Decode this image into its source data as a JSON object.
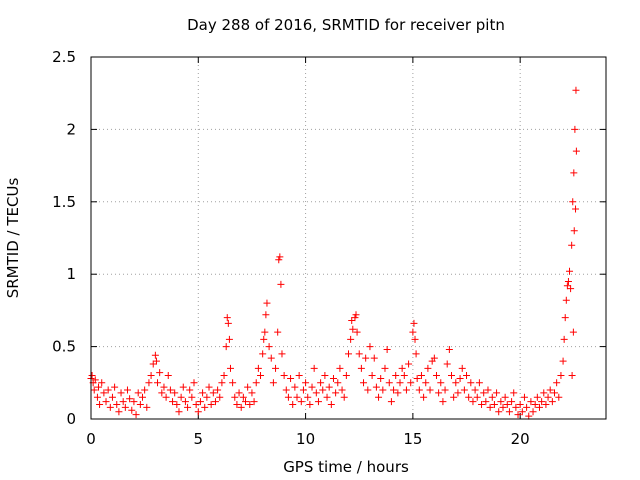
{
  "chart_data": {
    "type": "scatter",
    "title": "Day 288 of 2016, SRMTID for receiver pitn",
    "xlabel": "GPS time / hours",
    "ylabel": "SRMTID / TECUs",
    "xlim": [
      0,
      24
    ],
    "ylim": [
      0,
      2.5
    ],
    "xticks": [
      0,
      5,
      10,
      15,
      20
    ],
    "xtick_labels": [
      "0",
      "5",
      "10",
      "15",
      "20"
    ],
    "yticks": [
      0,
      0.5,
      1,
      1.5,
      2,
      2.5
    ],
    "ytick_labels": [
      "0",
      "0.5",
      "1",
      "1.5",
      "2",
      "2.5"
    ],
    "grid": true,
    "marker": "+",
    "marker_color": "#ff0000",
    "series": [
      {
        "name": "SRMTID",
        "points": [
          [
            0.0,
            0.28
          ],
          [
            0.05,
            0.3
          ],
          [
            0.1,
            0.25
          ],
          [
            0.15,
            0.2
          ],
          [
            0.2,
            0.27
          ],
          [
            0.3,
            0.15
          ],
          [
            0.35,
            0.22
          ],
          [
            0.4,
            0.1
          ],
          [
            0.5,
            0.25
          ],
          [
            0.6,
            0.18
          ],
          [
            0.7,
            0.12
          ],
          [
            0.8,
            0.2
          ],
          [
            0.9,
            0.08
          ],
          [
            1.0,
            0.15
          ],
          [
            1.1,
            0.22
          ],
          [
            1.2,
            0.1
          ],
          [
            1.3,
            0.05
          ],
          [
            1.4,
            0.18
          ],
          [
            1.5,
            0.12
          ],
          [
            1.6,
            0.08
          ],
          [
            1.7,
            0.2
          ],
          [
            1.8,
            0.14
          ],
          [
            1.9,
            0.06
          ],
          [
            2.0,
            0.12
          ],
          [
            2.1,
            0.03
          ],
          [
            2.2,
            0.18
          ],
          [
            2.3,
            0.1
          ],
          [
            2.4,
            0.15
          ],
          [
            2.5,
            0.2
          ],
          [
            2.6,
            0.08
          ],
          [
            2.7,
            0.25
          ],
          [
            2.8,
            0.3
          ],
          [
            2.9,
            0.38
          ],
          [
            3.0,
            0.44
          ],
          [
            3.05,
            0.4
          ],
          [
            3.1,
            0.25
          ],
          [
            3.2,
            0.32
          ],
          [
            3.3,
            0.18
          ],
          [
            3.4,
            0.22
          ],
          [
            3.5,
            0.15
          ],
          [
            3.6,
            0.3
          ],
          [
            3.7,
            0.2
          ],
          [
            3.8,
            0.12
          ],
          [
            3.9,
            0.18
          ],
          [
            4.0,
            0.1
          ],
          [
            4.1,
            0.05
          ],
          [
            4.2,
            0.15
          ],
          [
            4.3,
            0.22
          ],
          [
            4.4,
            0.12
          ],
          [
            4.5,
            0.08
          ],
          [
            4.6,
            0.2
          ],
          [
            4.7,
            0.15
          ],
          [
            4.8,
            0.25
          ],
          [
            4.9,
            0.1
          ],
          [
            5.0,
            0.05
          ],
          [
            5.1,
            0.12
          ],
          [
            5.2,
            0.18
          ],
          [
            5.3,
            0.08
          ],
          [
            5.4,
            0.15
          ],
          [
            5.5,
            0.22
          ],
          [
            5.6,
            0.1
          ],
          [
            5.7,
            0.18
          ],
          [
            5.8,
            0.12
          ],
          [
            5.9,
            0.2
          ],
          [
            6.0,
            0.15
          ],
          [
            6.1,
            0.25
          ],
          [
            6.2,
            0.3
          ],
          [
            6.3,
            0.5
          ],
          [
            6.35,
            0.7
          ],
          [
            6.4,
            0.66
          ],
          [
            6.45,
            0.55
          ],
          [
            6.5,
            0.35
          ],
          [
            6.6,
            0.25
          ],
          [
            6.7,
            0.15
          ],
          [
            6.8,
            0.1
          ],
          [
            6.9,
            0.18
          ],
          [
            7.0,
            0.08
          ],
          [
            7.1,
            0.15
          ],
          [
            7.2,
            0.12
          ],
          [
            7.3,
            0.22
          ],
          [
            7.4,
            0.1
          ],
          [
            7.5,
            0.18
          ],
          [
            7.6,
            0.12
          ],
          [
            7.7,
            0.25
          ],
          [
            7.8,
            0.35
          ],
          [
            7.9,
            0.3
          ],
          [
            8.0,
            0.45
          ],
          [
            8.05,
            0.55
          ],
          [
            8.1,
            0.6
          ],
          [
            8.15,
            0.72
          ],
          [
            8.2,
            0.8
          ],
          [
            8.3,
            0.5
          ],
          [
            8.4,
            0.42
          ],
          [
            8.5,
            0.25
          ],
          [
            8.6,
            0.35
          ],
          [
            8.7,
            0.6
          ],
          [
            8.75,
            1.1
          ],
          [
            8.8,
            1.12
          ],
          [
            8.85,
            0.93
          ],
          [
            8.9,
            0.45
          ],
          [
            9.0,
            0.3
          ],
          [
            9.1,
            0.2
          ],
          [
            9.2,
            0.15
          ],
          [
            9.3,
            0.28
          ],
          [
            9.4,
            0.1
          ],
          [
            9.5,
            0.22
          ],
          [
            9.6,
            0.15
          ],
          [
            9.7,
            0.3
          ],
          [
            9.8,
            0.12
          ],
          [
            9.9,
            0.2
          ],
          [
            10.0,
            0.25
          ],
          [
            10.1,
            0.15
          ],
          [
            10.2,
            0.1
          ],
          [
            10.3,
            0.22
          ],
          [
            10.4,
            0.35
          ],
          [
            10.5,
            0.18
          ],
          [
            10.6,
            0.12
          ],
          [
            10.7,
            0.25
          ],
          [
            10.8,
            0.2
          ],
          [
            10.9,
            0.3
          ],
          [
            11.0,
            0.15
          ],
          [
            11.1,
            0.22
          ],
          [
            11.2,
            0.1
          ],
          [
            11.3,
            0.28
          ],
          [
            11.4,
            0.18
          ],
          [
            11.5,
            0.25
          ],
          [
            11.6,
            0.35
          ],
          [
            11.7,
            0.2
          ],
          [
            11.8,
            0.15
          ],
          [
            11.9,
            0.3
          ],
          [
            12.0,
            0.45
          ],
          [
            12.1,
            0.55
          ],
          [
            12.15,
            0.68
          ],
          [
            12.2,
            0.62
          ],
          [
            12.3,
            0.7
          ],
          [
            12.35,
            0.72
          ],
          [
            12.4,
            0.6
          ],
          [
            12.5,
            0.45
          ],
          [
            12.6,
            0.35
          ],
          [
            12.7,
            0.25
          ],
          [
            12.8,
            0.42
          ],
          [
            12.9,
            0.2
          ],
          [
            13.0,
            0.5
          ],
          [
            13.1,
            0.3
          ],
          [
            13.2,
            0.42
          ],
          [
            13.3,
            0.22
          ],
          [
            13.4,
            0.15
          ],
          [
            13.5,
            0.28
          ],
          [
            13.6,
            0.2
          ],
          [
            13.7,
            0.35
          ],
          [
            13.8,
            0.48
          ],
          [
            13.9,
            0.25
          ],
          [
            14.0,
            0.12
          ],
          [
            14.1,
            0.2
          ],
          [
            14.2,
            0.3
          ],
          [
            14.3,
            0.18
          ],
          [
            14.4,
            0.25
          ],
          [
            14.5,
            0.35
          ],
          [
            14.6,
            0.3
          ],
          [
            14.7,
            0.2
          ],
          [
            14.8,
            0.38
          ],
          [
            14.9,
            0.25
          ],
          [
            15.0,
            0.6
          ],
          [
            15.05,
            0.66
          ],
          [
            15.1,
            0.55
          ],
          [
            15.15,
            0.45
          ],
          [
            15.2,
            0.28
          ],
          [
            15.3,
            0.2
          ],
          [
            15.4,
            0.3
          ],
          [
            15.5,
            0.15
          ],
          [
            15.6,
            0.25
          ],
          [
            15.7,
            0.35
          ],
          [
            15.8,
            0.2
          ],
          [
            15.9,
            0.4
          ],
          [
            16.0,
            0.42
          ],
          [
            16.1,
            0.3
          ],
          [
            16.2,
            0.18
          ],
          [
            16.3,
            0.25
          ],
          [
            16.4,
            0.12
          ],
          [
            16.5,
            0.2
          ],
          [
            16.6,
            0.38
          ],
          [
            16.7,
            0.48
          ],
          [
            16.8,
            0.3
          ],
          [
            16.9,
            0.15
          ],
          [
            17.0,
            0.25
          ],
          [
            17.1,
            0.18
          ],
          [
            17.2,
            0.28
          ],
          [
            17.3,
            0.35
          ],
          [
            17.4,
            0.2
          ],
          [
            17.5,
            0.3
          ],
          [
            17.6,
            0.15
          ],
          [
            17.7,
            0.25
          ],
          [
            17.8,
            0.12
          ],
          [
            17.9,
            0.2
          ],
          [
            18.0,
            0.15
          ],
          [
            18.1,
            0.25
          ],
          [
            18.2,
            0.1
          ],
          [
            18.3,
            0.18
          ],
          [
            18.4,
            0.12
          ],
          [
            18.5,
            0.2
          ],
          [
            18.6,
            0.08
          ],
          [
            18.7,
            0.15
          ],
          [
            18.8,
            0.1
          ],
          [
            18.9,
            0.18
          ],
          [
            19.0,
            0.05
          ],
          [
            19.1,
            0.12
          ],
          [
            19.2,
            0.08
          ],
          [
            19.3,
            0.15
          ],
          [
            19.4,
            0.1
          ],
          [
            19.5,
            0.05
          ],
          [
            19.6,
            0.12
          ],
          [
            19.7,
            0.18
          ],
          [
            19.8,
            0.08
          ],
          [
            19.9,
            0.03
          ],
          [
            20.0,
            0.1
          ],
          [
            20.1,
            0.05
          ],
          [
            20.2,
            0.15
          ],
          [
            20.3,
            0.08
          ],
          [
            20.4,
            0.02
          ],
          [
            20.5,
            0.12
          ],
          [
            20.6,
            0.05
          ],
          [
            20.7,
            0.1
          ],
          [
            20.8,
            0.15
          ],
          [
            20.9,
            0.08
          ],
          [
            21.0,
            0.12
          ],
          [
            21.1,
            0.18
          ],
          [
            21.2,
            0.1
          ],
          [
            21.3,
            0.15
          ],
          [
            21.4,
            0.2
          ],
          [
            21.5,
            0.12
          ],
          [
            21.6,
            0.18
          ],
          [
            21.7,
            0.25
          ],
          [
            21.8,
            0.15
          ],
          [
            21.9,
            0.3
          ],
          [
            22.0,
            0.4
          ],
          [
            22.05,
            0.55
          ],
          [
            22.1,
            0.7
          ],
          [
            22.15,
            0.82
          ],
          [
            22.2,
            0.92
          ],
          [
            22.25,
            0.95
          ],
          [
            22.3,
            1.02
          ],
          [
            22.35,
            0.9
          ],
          [
            22.4,
            1.2
          ],
          [
            22.45,
            1.5
          ],
          [
            22.5,
            1.7
          ],
          [
            22.55,
            2.0
          ],
          [
            22.6,
            2.27
          ],
          [
            22.62,
            1.85
          ],
          [
            22.58,
            1.45
          ],
          [
            22.52,
            1.3
          ],
          [
            22.48,
            0.6
          ],
          [
            22.42,
            0.3
          ]
        ]
      }
    ]
  }
}
